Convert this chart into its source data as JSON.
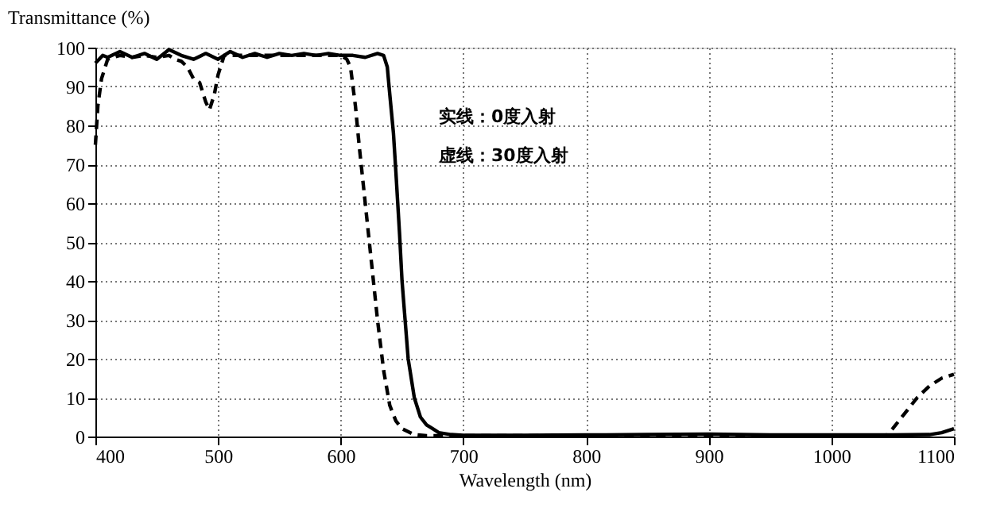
{
  "chart_data": {
    "type": "line",
    "xlabel": "Wavelength (nm)",
    "ylabel": "Transmittance (%)",
    "xlim": [
      400,
      1100
    ],
    "xticks": [
      400,
      500,
      600,
      700,
      800,
      900,
      1000,
      1100
    ],
    "ylim": [
      0,
      100
    ],
    "yticks": [
      0,
      10,
      20,
      30,
      40,
      50,
      60,
      70,
      80,
      90,
      100
    ],
    "grid": true,
    "marker": "none",
    "annotations": [
      "实线：0度入射",
      "虚线：30度入射"
    ],
    "series": [
      {
        "color": "#000000",
        "line_style": "solid",
        "x": [
          400,
          403,
          406,
          410,
          420,
          430,
          440,
          450,
          460,
          470,
          480,
          490,
          500,
          510,
          520,
          530,
          540,
          550,
          560,
          570,
          580,
          590,
          600,
          610,
          620,
          630,
          635,
          638,
          640,
          643,
          645,
          648,
          650,
          653,
          655,
          658,
          660,
          665,
          670,
          675,
          680,
          690,
          700,
          750,
          800,
          850,
          900,
          950,
          1000,
          1050,
          1080,
          1090,
          1100
        ],
        "values": [
          96,
          97,
          98,
          97.5,
          99,
          97.5,
          98.5,
          97,
          99.5,
          98,
          97,
          98.5,
          97,
          99,
          97.5,
          98.5,
          97.5,
          98.5,
          98,
          98.5,
          98,
          98.5,
          98,
          98,
          97.5,
          98.5,
          98,
          95,
          88,
          78,
          68,
          52,
          40,
          28,
          20,
          14,
          10,
          5,
          3,
          2,
          1,
          0.5,
          0.3,
          0.3,
          0.4,
          0.5,
          0.6,
          0.4,
          0.4,
          0.4,
          0.5,
          1,
          2
        ]
      },
      {
        "color": "#000000",
        "line_style": "dashed",
        "x": [
          400,
          402,
          405,
          410,
          420,
          430,
          440,
          450,
          460,
          465,
          470,
          475,
          480,
          485,
          490,
          493,
          497,
          500,
          505,
          510,
          520,
          540,
          560,
          580,
          600,
          605,
          608,
          612,
          615,
          620,
          625,
          630,
          635,
          640,
          645,
          650,
          660,
          670,
          700,
          800,
          900,
          1000,
          1045,
          1050,
          1060,
          1070,
          1080,
          1090,
          1100
        ],
        "values": [
          75,
          85,
          92,
          97,
          98,
          97.5,
          98,
          97.5,
          98,
          97,
          96.5,
          95,
          92,
          91,
          86,
          84,
          88,
          93,
          98,
          98,
          98,
          98,
          98,
          98,
          98,
          97,
          95,
          85,
          75,
          60,
          45,
          30,
          17,
          8,
          4,
          2,
          0.5,
          0.2,
          0.2,
          0.2,
          0.2,
          0.2,
          0.3,
          2,
          6,
          10,
          13,
          15,
          16
        ]
      }
    ]
  }
}
